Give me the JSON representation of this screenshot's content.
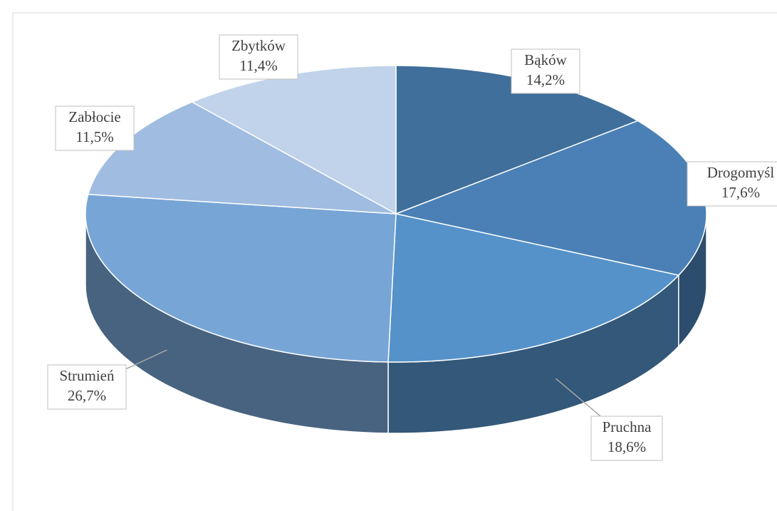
{
  "chart_data": {
    "type": "pie3d",
    "categories": [
      "Bąków",
      "Drogomyśl",
      "Pruchna",
      "Strumień",
      "Zabłocie",
      "Zbytków"
    ],
    "values": [
      14.2,
      17.6,
      18.6,
      26.7,
      11.5,
      11.4
    ],
    "value_labels": [
      "14,2%",
      "17,6%",
      "18,6%",
      "26,7%",
      "11,5%",
      "11,4%"
    ],
    "colors": [
      "#3f6f9a",
      "#4a80b5",
      "#5592c9",
      "#77a5d6",
      "#a0bce0",
      "#c0d3ea"
    ]
  }
}
